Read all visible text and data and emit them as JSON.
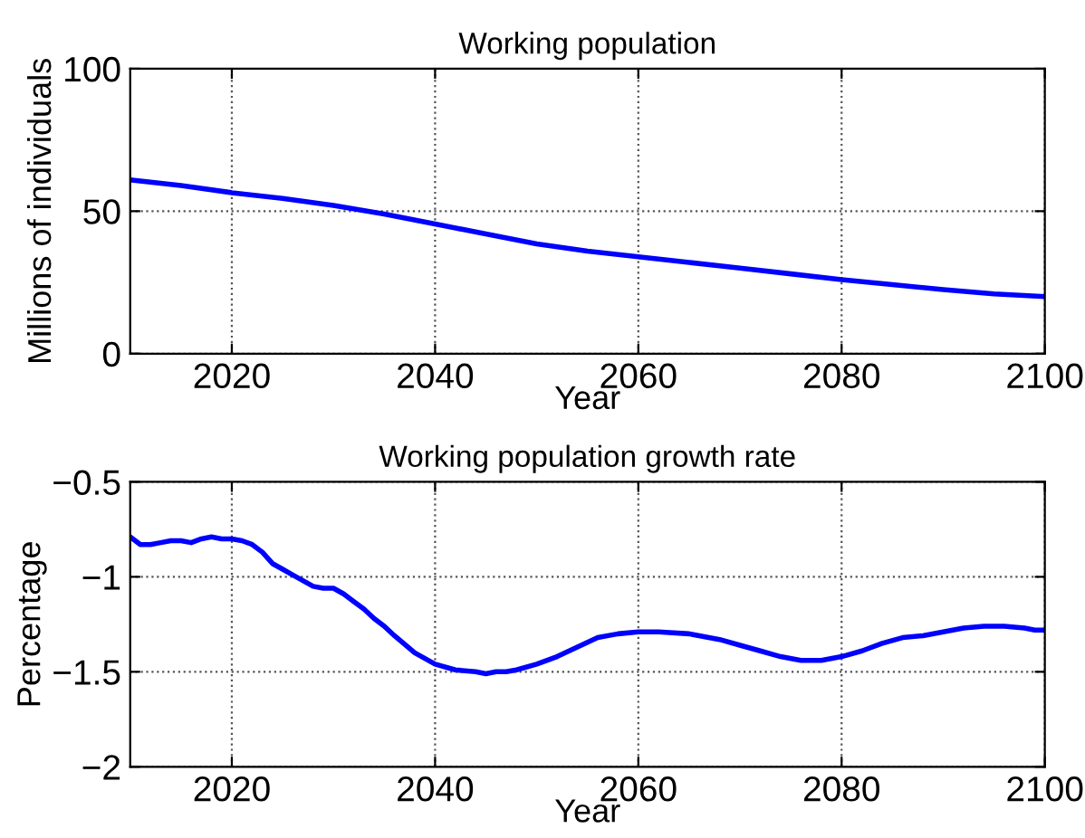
{
  "chart_data": [
    {
      "type": "line",
      "title": "Working population",
      "xlabel": "Year",
      "ylabel": "Millions of individuals",
      "x": [
        2010,
        2015,
        2020,
        2025,
        2030,
        2035,
        2040,
        2045,
        2050,
        2055,
        2060,
        2065,
        2070,
        2075,
        2080,
        2085,
        2090,
        2095,
        2100
      ],
      "series": [
        {
          "color": "#0000ff",
          "values": [
            61,
            59,
            56.5,
            54.5,
            52,
            49,
            45.5,
            42,
            38.5,
            36,
            34,
            32,
            30,
            28,
            26,
            24.2,
            22.5,
            21,
            20
          ]
        }
      ],
      "xlim": [
        2010,
        2100
      ],
      "xticks": [
        2020,
        2040,
        2060,
        2080,
        2100
      ],
      "ylim": [
        0,
        100
      ],
      "yticks": [
        0,
        50,
        100
      ],
      "grid": true,
      "line_style": "solid",
      "marker": "none"
    },
    {
      "type": "line",
      "title": "Working population growth rate",
      "xlabel": "Year",
      "ylabel": "Percentage",
      "x": [
        2010,
        2011,
        2012,
        2013,
        2014,
        2015,
        2016,
        2017,
        2018,
        2019,
        2020,
        2021,
        2022,
        2023,
        2024,
        2025,
        2026,
        2027,
        2028,
        2029,
        2030,
        2031,
        2032,
        2033,
        2034,
        2035,
        2036,
        2038,
        2040,
        2042,
        2044,
        2045,
        2046,
        2047,
        2048,
        2050,
        2052,
        2054,
        2056,
        2058,
        2060,
        2062,
        2065,
        2068,
        2070,
        2072,
        2074,
        2076,
        2078,
        2080,
        2082,
        2084,
        2086,
        2088,
        2090,
        2092,
        2094,
        2096,
        2098,
        2099,
        2100
      ],
      "series": [
        {
          "color": "#0000ff",
          "values": [
            -0.79,
            -0.83,
            -0.83,
            -0.82,
            -0.81,
            -0.81,
            -0.82,
            -0.8,
            -0.79,
            -0.8,
            -0.8,
            -0.81,
            -0.83,
            -0.87,
            -0.93,
            -0.96,
            -0.99,
            -1.02,
            -1.05,
            -1.06,
            -1.06,
            -1.09,
            -1.13,
            -1.17,
            -1.22,
            -1.26,
            -1.31,
            -1.4,
            -1.46,
            -1.49,
            -1.5,
            -1.51,
            -1.5,
            -1.5,
            -1.49,
            -1.46,
            -1.42,
            -1.37,
            -1.32,
            -1.3,
            -1.29,
            -1.29,
            -1.3,
            -1.33,
            -1.36,
            -1.39,
            -1.42,
            -1.44,
            -1.44,
            -1.42,
            -1.39,
            -1.35,
            -1.32,
            -1.31,
            -1.29,
            -1.27,
            -1.26,
            -1.26,
            -1.27,
            -1.28,
            -1.28
          ]
        }
      ],
      "xlim": [
        2010,
        2100
      ],
      "xticks": [
        2020,
        2040,
        2060,
        2080,
        2100
      ],
      "ylim": [
        -2,
        -0.5
      ],
      "yticks": [
        {
          "value": -2,
          "label": "−2"
        },
        {
          "value": -1.5,
          "label": "−1.5"
        },
        {
          "value": -1,
          "label": "−1"
        },
        {
          "value": -0.5,
          "label": "−0.5"
        }
      ],
      "grid": true,
      "line_style": "solid",
      "marker": "none"
    }
  ]
}
